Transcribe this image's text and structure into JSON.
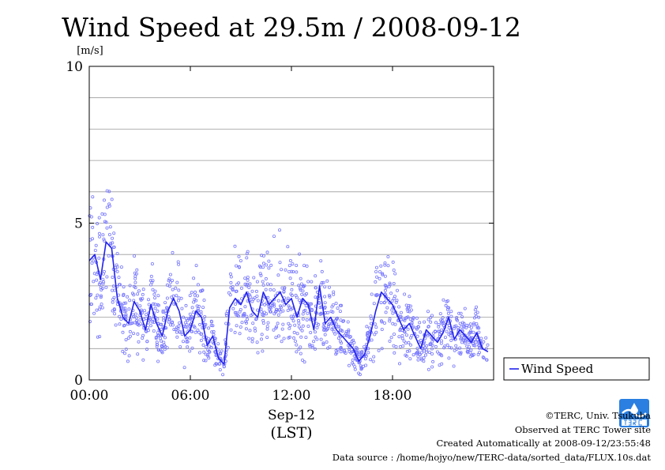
{
  "chart_data": {
    "type": "scatter",
    "title": "Wind Speed at 29.5m / 2008-09-12",
    "ylabel": "[m/s]",
    "xlabel_date": "Sep-12",
    "xlabel_unit": "(LST)",
    "ylim": [
      0,
      10
    ],
    "xlim": [
      "00:00",
      "24:00"
    ],
    "x_ticks": [
      "00:00",
      "06:00",
      "12:00",
      "18:00"
    ],
    "y_ticks": [
      0,
      5,
      10
    ],
    "y_gridlines": [
      1,
      2,
      3,
      4,
      5,
      6,
      7,
      8,
      9
    ],
    "grid": true,
    "legend": {
      "position": "right",
      "label": "Wind Speed"
    },
    "series": [
      {
        "name": "Wind Speed",
        "color": "#2222ee",
        "point_color": "#7777ff",
        "x": [
          "00:00",
          "00:20",
          "00:40",
          "01:00",
          "01:20",
          "01:40",
          "02:00",
          "02:20",
          "02:40",
          "03:00",
          "03:20",
          "03:40",
          "04:00",
          "04:20",
          "04:40",
          "05:00",
          "05:20",
          "05:40",
          "06:00",
          "06:20",
          "06:40",
          "07:00",
          "07:20",
          "07:40",
          "08:00",
          "08:20",
          "08:40",
          "09:00",
          "09:20",
          "09:40",
          "10:00",
          "10:20",
          "10:40",
          "11:00",
          "11:20",
          "11:40",
          "12:00",
          "12:20",
          "12:40",
          "13:00",
          "13:20",
          "13:40",
          "14:00",
          "14:20",
          "14:40",
          "15:00",
          "15:20",
          "15:40",
          "16:00",
          "16:20",
          "16:40",
          "17:00",
          "17:20",
          "17:40",
          "18:00",
          "18:20",
          "18:40",
          "19:00",
          "19:20",
          "19:40",
          "20:00",
          "20:20",
          "20:40",
          "21:00",
          "21:20",
          "21:40",
          "22:00",
          "22:20",
          "22:40",
          "23:00",
          "23:20",
          "23:40"
        ],
        "values": [
          3.8,
          4.0,
          3.2,
          4.4,
          4.2,
          2.6,
          2.0,
          1.8,
          2.5,
          2.2,
          1.6,
          2.4,
          1.8,
          1.4,
          2.2,
          2.6,
          2.2,
          1.4,
          1.6,
          2.2,
          2.0,
          1.1,
          1.4,
          0.7,
          0.5,
          2.3,
          2.6,
          2.4,
          2.8,
          2.2,
          2.0,
          2.8,
          2.4,
          2.6,
          2.8,
          2.4,
          2.6,
          2.0,
          2.6,
          2.4,
          1.6,
          3.0,
          1.8,
          2.0,
          1.6,
          1.4,
          1.2,
          1.0,
          0.6,
          0.8,
          1.4,
          2.2,
          2.8,
          2.6,
          2.4,
          2.0,
          1.6,
          1.8,
          1.4,
          1.0,
          1.6,
          1.4,
          1.2,
          1.5,
          2.0,
          1.3,
          1.6,
          1.4,
          1.2,
          1.5,
          1.0,
          0.9
        ]
      }
    ]
  },
  "credits": {
    "copyright": "©TERC, Univ. Tsukuba",
    "observed": "Observed at TERC Tower site",
    "created": "Created Automatically at 2008-09-12/23:55:48",
    "source": "Data source : /home/hojyo/new/TERC-data/sorted_data/FLUX.10s.dat"
  },
  "logo": {
    "name": "TERC",
    "color": "#2a7fe0"
  }
}
